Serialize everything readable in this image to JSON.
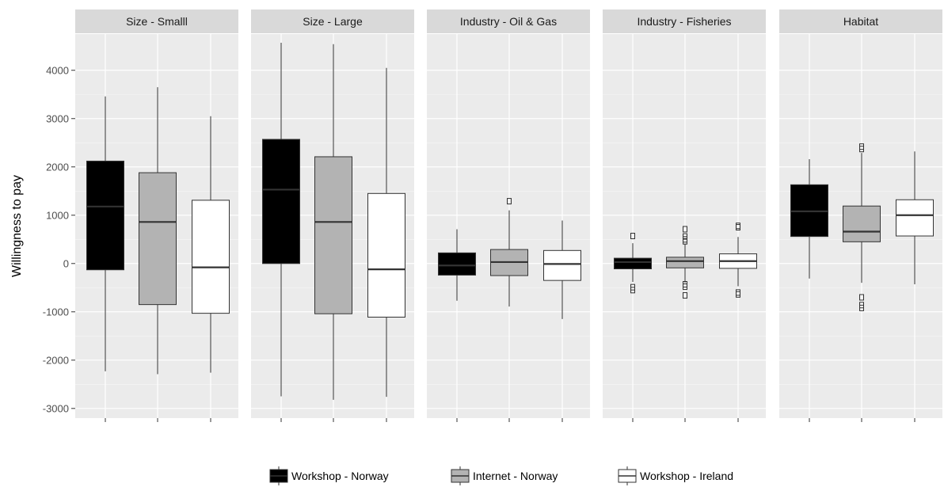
{
  "chart_data": {
    "type": "boxplot",
    "ylabel": "Willingness to pay",
    "ylim": [
      -3200,
      4750
    ],
    "yticks": [
      -3000,
      -2000,
      -1000,
      0,
      1000,
      2000,
      3000,
      4000
    ],
    "ytick_labels": [
      "-3000",
      "-2000",
      "-1000",
      "0",
      "1000",
      "2000",
      "3000",
      "4000"
    ],
    "grid": true,
    "legend_position": "bottom",
    "series": [
      {
        "name": "Workshop - Norway",
        "color": "#000000"
      },
      {
        "name": "Internet - Norway",
        "color": "#b3b3b3"
      },
      {
        "name": "Workshop - Ireland",
        "color": "#ffffff"
      }
    ],
    "panels": [
      {
        "title": "Size - Smalll",
        "boxes": [
          {
            "series": "Workshop - Norway",
            "whisker_low": -2230,
            "q1": -130,
            "median": 1180,
            "q3": 2120,
            "whisker_high": 3460,
            "outliers": []
          },
          {
            "series": "Internet - Norway",
            "whisker_low": -2290,
            "q1": -850,
            "median": 860,
            "q3": 1880,
            "whisker_high": 3650,
            "outliers": []
          },
          {
            "series": "Workshop - Ireland",
            "whisker_low": -2260,
            "q1": -1030,
            "median": -80,
            "q3": 1310,
            "whisker_high": 3050,
            "outliers": []
          }
        ]
      },
      {
        "title": "Size - Large",
        "boxes": [
          {
            "series": "Workshop - Norway",
            "whisker_low": -2750,
            "q1": 0,
            "median": 1530,
            "q3": 2570,
            "whisker_high": 4570,
            "outliers": []
          },
          {
            "series": "Internet - Norway",
            "whisker_low": -2820,
            "q1": -1040,
            "median": 860,
            "q3": 2210,
            "whisker_high": 4540,
            "outliers": []
          },
          {
            "series": "Workshop - Ireland",
            "whisker_low": -2760,
            "q1": -1110,
            "median": -120,
            "q3": 1450,
            "whisker_high": 4050,
            "outliers": []
          }
        ]
      },
      {
        "title": "Industry - Oil & Gas",
        "boxes": [
          {
            "series": "Workshop - Norway",
            "whisker_low": -770,
            "q1": -240,
            "median": -40,
            "q3": 220,
            "whisker_high": 710,
            "outliers": []
          },
          {
            "series": "Internet - Norway",
            "whisker_low": -890,
            "q1": -250,
            "median": 30,
            "q3": 290,
            "whisker_high": 1100,
            "outliers": [
              1290
            ]
          },
          {
            "series": "Workshop - Ireland",
            "whisker_low": -1150,
            "q1": -350,
            "median": -10,
            "q3": 270,
            "whisker_high": 890,
            "outliers": []
          }
        ]
      },
      {
        "title": "Industry - Fisheries",
        "boxes": [
          {
            "series": "Workshop - Norway",
            "whisker_low": -380,
            "q1": -110,
            "median": 30,
            "q3": 110,
            "whisker_high": 420,
            "outliers": [
              570,
              -490,
              -550
            ]
          },
          {
            "series": "Internet - Norway",
            "whisker_low": -400,
            "q1": -90,
            "median": 50,
            "q3": 130,
            "whisker_high": 410,
            "outliers": [
              710,
              560,
              500,
              460,
              -430,
              -480,
              -660
            ]
          },
          {
            "series": "Workshop - Ireland",
            "whisker_low": -470,
            "q1": -100,
            "median": 50,
            "q3": 200,
            "whisker_high": 550,
            "outliers": [
              780,
              750,
              -600,
              -640
            ]
          }
        ]
      },
      {
        "title": "Habitat",
        "boxes": [
          {
            "series": "Workshop - Norway",
            "whisker_low": -310,
            "q1": 560,
            "median": 1080,
            "q3": 1630,
            "whisker_high": 2160,
            "outliers": []
          },
          {
            "series": "Internet - Norway",
            "whisker_low": -400,
            "q1": 450,
            "median": 660,
            "q3": 1190,
            "whisker_high": 2290,
            "outliers": [
              2420,
              2370,
              -700,
              -860,
              -920
            ]
          },
          {
            "series": "Workshop - Ireland",
            "whisker_low": -430,
            "q1": 570,
            "median": 1000,
            "q3": 1320,
            "whisker_high": 2320,
            "outliers": []
          }
        ]
      }
    ]
  }
}
